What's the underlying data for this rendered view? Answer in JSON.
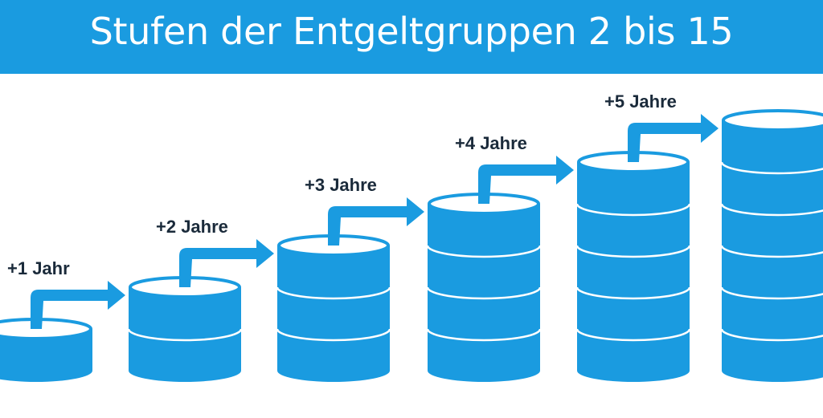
{
  "header": {
    "title": "Stufen der Entgeltgruppen 2 bis 15"
  },
  "colors": {
    "header_bg": "#1a9be0",
    "coin_side": "#1a9be0",
    "coin_line": "#ffffff",
    "coin_top": "#ffffff",
    "arrow": "#1a9be0",
    "label_text": "#1a2a3a"
  },
  "steps": [
    {
      "name": "stufe-1",
      "coins": 1
    },
    {
      "name": "stufe-2",
      "coins": 2,
      "transition": "+1 Jahr"
    },
    {
      "name": "stufe-3",
      "coins": 3,
      "transition": "+2 Jahre"
    },
    {
      "name": "stufe-4",
      "coins": 4,
      "transition": "+3 Jahre"
    },
    {
      "name": "stufe-5",
      "coins": 5,
      "transition": "+4 Jahre"
    },
    {
      "name": "stufe-6",
      "coins": 6,
      "transition": "+5 Jahre"
    }
  ]
}
